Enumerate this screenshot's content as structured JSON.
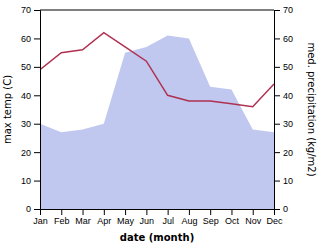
{
  "chart_data": {
    "type": "line",
    "categories": [
      "Jan",
      "Feb",
      "Mar",
      "Apr",
      "May",
      "Jun",
      "Jul",
      "Aug",
      "Sep",
      "Oct",
      "Nov",
      "Dec"
    ],
    "xlabel": "date (month)",
    "ylabel": "max temp (C)",
    "y2label": "med. precipitation (kg/m2)",
    "ylim": [
      0,
      70
    ],
    "yticks": [
      0,
      10,
      20,
      30,
      40,
      50,
      60,
      70
    ],
    "y2lim": [
      0,
      70
    ],
    "y2ticks": [
      0,
      10,
      20,
      30,
      40,
      50,
      60,
      70
    ],
    "grid": false,
    "series": [
      {
        "type": "area",
        "axis": "y2",
        "color": "#c0c8f0",
        "values": [
          30,
          27,
          28,
          30,
          55,
          57,
          61,
          60,
          43,
          42,
          28,
          27
        ]
      },
      {
        "type": "line",
        "color": "#b03050",
        "values": [
          49,
          55,
          56,
          62,
          57,
          52,
          40,
          38,
          38,
          37,
          36,
          44
        ]
      }
    ]
  }
}
